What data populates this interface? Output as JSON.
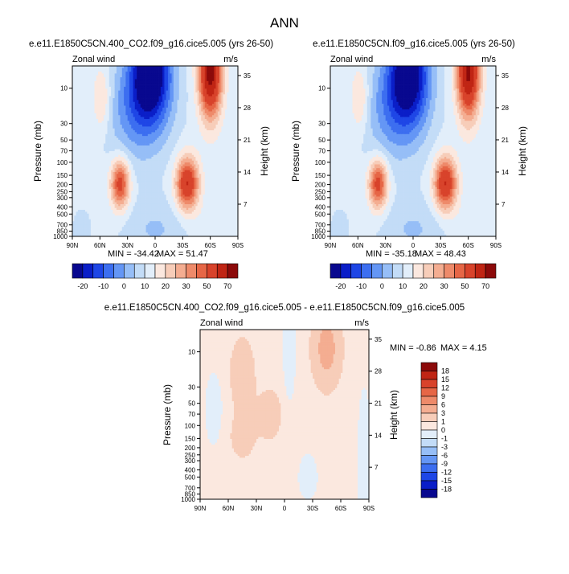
{
  "figure": {
    "title": "ANN"
  },
  "common": {
    "variable": "Zonal wind",
    "units": "m/s",
    "ylabel_left": "Pressure (mb)",
    "ylabel_right": "Height (km)",
    "x_ticks": [
      "90N",
      "60N",
      "30N",
      "0",
      "30S",
      "60S",
      "90S"
    ],
    "p_ticks": [
      "10",
      "30",
      "50",
      "70",
      "100",
      "150",
      "200",
      "250",
      "300",
      "400",
      "500",
      "700",
      "850",
      "1000"
    ],
    "z_ticks": [
      "35",
      "28",
      "21",
      "14",
      "7"
    ]
  },
  "panels": [
    {
      "title": "e.e11.E1850C5CN.400_CO2.f09_g16.cice5.005 (yrs 26-50)",
      "min_label": "MIN = -34.42",
      "max_label": "MAX = 51.47",
      "colorbar": {
        "labels": [
          "-20",
          "-10",
          "0",
          "10",
          "20",
          "30",
          "50",
          "70"
        ],
        "colors": [
          "#08088f",
          "#0a1ec8",
          "#1e46e6",
          "#3c6ef0",
          "#6496f5",
          "#96bef7",
          "#c3dcf7",
          "#e2eefa",
          "#fbe8df",
          "#f7cdb9",
          "#f4ad91",
          "#ee8a6a",
          "#e66646",
          "#d8432b",
          "#c02514",
          "#8c0a0a"
        ]
      }
    },
    {
      "title": "e.e11.E1850C5CN.f09_g16.cice5.005 (yrs 26-50)",
      "min_label": "MIN = -35.18",
      "max_label": "MAX = 48.43",
      "colorbar": {
        "labels": [
          "-20",
          "-10",
          "0",
          "10",
          "20",
          "30",
          "50",
          "70"
        ],
        "colors": [
          "#08088f",
          "#0a1ec8",
          "#1e46e6",
          "#3c6ef0",
          "#6496f5",
          "#96bef7",
          "#c3dcf7",
          "#e2eefa",
          "#fbe8df",
          "#f7cdb9",
          "#f4ad91",
          "#ee8a6a",
          "#e66646",
          "#d8432b",
          "#c02514",
          "#8c0a0a"
        ]
      }
    },
    {
      "title": "e.e11.E1850C5CN.400_CO2.f09_g16.cice5.005 - e.e11.E1850C5CN.f09_g16.cice5.005",
      "min_label": "MIN = -0.86",
      "max_label": "MAX = 4.15",
      "colorbar": {
        "labels": [
          "18",
          "15",
          "12",
          "9",
          "6",
          "3",
          "1",
          "0",
          "-1",
          "-3",
          "-6",
          "-9",
          "-12",
          "-15",
          "-18"
        ],
        "colors": [
          "#8c0a0a",
          "#c02514",
          "#d8432b",
          "#e66646",
          "#ee8a6a",
          "#f4ad91",
          "#f7cdb9",
          "#fbe8df",
          "#e2eefa",
          "#c3dcf7",
          "#96bef7",
          "#6496f5",
          "#3c6ef0",
          "#1e46e6",
          "#0a1ec8",
          "#08088f"
        ]
      }
    }
  ],
  "chart_data": [
    {
      "type": "heatmap",
      "title": "e.e11.E1850C5CN.400_CO2.f09_g16.cice5.005 (yrs 26-50)",
      "xlabel": "",
      "ylabel": "Pressure (mb)",
      "xlim": [
        -90,
        90
      ],
      "ylim_pressure_mb": [
        1000,
        5
      ],
      "min": -34.42,
      "max": 51.47,
      "features": [
        {
          "kind": "easterly_jet",
          "lat": 5,
          "p": 7,
          "value": -34.42
        },
        {
          "kind": "westerly_jet",
          "lat": -60,
          "p": 7,
          "value": 51.47
        },
        {
          "kind": "westerly_jet",
          "lat": 38,
          "p": 200,
          "value": 31
        },
        {
          "kind": "westerly_jet",
          "lat": -35,
          "p": 200,
          "value": 37
        },
        {
          "kind": "westerly_flank",
          "lat": 58,
          "p": 15,
          "value": 12
        }
      ]
    },
    {
      "type": "heatmap",
      "title": "e.e11.E1850C5CN.f09_g16.cice5.005 (yrs 26-50)",
      "xlabel": "",
      "ylabel": "Pressure (mb)",
      "xlim": [
        -90,
        90
      ],
      "ylim_pressure_mb": [
        1000,
        5
      ],
      "min": -35.18,
      "max": 48.43,
      "features": [
        {
          "kind": "easterly_jet",
          "lat": 5,
          "p": 7,
          "value": -35.18
        },
        {
          "kind": "westerly_jet",
          "lat": -60,
          "p": 7,
          "value": 48.43
        },
        {
          "kind": "westerly_jet",
          "lat": 38,
          "p": 200,
          "value": 30
        },
        {
          "kind": "westerly_jet",
          "lat": -35,
          "p": 200,
          "value": 36
        },
        {
          "kind": "westerly_flank",
          "lat": 58,
          "p": 15,
          "value": 11
        }
      ]
    },
    {
      "type": "heatmap",
      "title": "e.e11.E1850C5CN.400_CO2.f09_g16.cice5.005 - e.e11.E1850C5CN.f09_g16.cice5.005",
      "xlabel": "",
      "ylabel": "Pressure (mb)",
      "xlim": [
        -90,
        90
      ],
      "ylim_pressure_mb": [
        1000,
        5
      ],
      "min": -0.86,
      "max": 4.15,
      "features": [
        {
          "kind": "increase",
          "lat": -45,
          "p": 10,
          "value": 4.15
        },
        {
          "kind": "increase",
          "lat": 45,
          "p": 20,
          "value": 1.8
        },
        {
          "kind": "increase",
          "lat": 15,
          "p": 70,
          "value": 1.5
        },
        {
          "kind": "decrease",
          "lat": -5,
          "p": 10,
          "value": -0.86
        },
        {
          "kind": "decrease",
          "lat": 75,
          "p": 60,
          "value": -0.5
        },
        {
          "kind": "decrease",
          "lat": -25,
          "p": 500,
          "value": -0.6
        }
      ]
    }
  ]
}
